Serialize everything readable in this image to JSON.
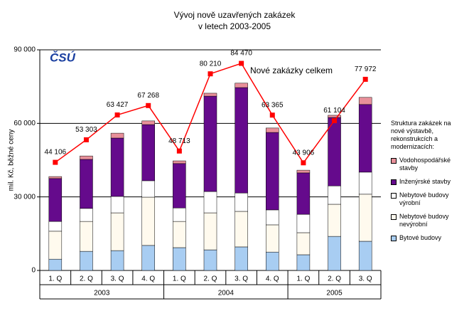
{
  "chart_data": {
    "type": "bar",
    "stacked": true,
    "title": "Vývoj nově uzavřených zakázek",
    "subtitle": "v letech 2003-2005",
    "logo": "ČSÚ",
    "y_label": "mil. Kč, běžné ceny",
    "legend_title": "Struktura zakázek na nové výstavbě, rekonstrukcích a modernizacích:",
    "groups": [
      {
        "name": "2003",
        "categories": [
          "1. Q",
          "2. Q",
          "3. Q",
          "4. Q"
        ]
      },
      {
        "name": "2004",
        "categories": [
          "1. Q",
          "2. Q",
          "3. Q",
          "4. Q"
        ]
      },
      {
        "name": "2005",
        "categories": [
          "1. Q",
          "2. Q",
          "3. Q"
        ]
      }
    ],
    "ylim": [
      0,
      90000
    ],
    "yticks": [
      {
        "value": 0,
        "label": "0"
      },
      {
        "value": 30000,
        "label": "30 000"
      },
      {
        "value": 60000,
        "label": "60 000"
      },
      {
        "value": 90000,
        "label": "90 000"
      }
    ],
    "grid": true,
    "series": [
      {
        "name": "Bytové budovy",
        "color": "#a8cdf2",
        "values": [
          4600,
          7800,
          8100,
          10200,
          9300,
          8400,
          9600,
          7500,
          6400,
          13900,
          11900
        ]
      },
      {
        "name": "Nebytové budovy nevýrobní",
        "color": "#fffaee",
        "values": [
          11400,
          12200,
          15400,
          19700,
          10700,
          15100,
          14500,
          11100,
          9000,
          13100,
          19200
        ]
      },
      {
        "name": "Nebytové budovy výrobní",
        "color": "#ffffff",
        "values": [
          4000,
          5300,
          6700,
          6700,
          5500,
          8700,
          7500,
          6100,
          7500,
          7500,
          9000
        ]
      },
      {
        "name": "Inženýrské stavby",
        "color": "#650a8c",
        "values": [
          17500,
          20000,
          23800,
          22900,
          18100,
          38900,
          43000,
          31600,
          16900,
          27900,
          27600
        ]
      },
      {
        "name": "Vodohospodářské stavby",
        "color": "#e8909a",
        "values": [
          800,
          1400,
          2000,
          1500,
          1100,
          1200,
          1800,
          1800,
          1100,
          900,
          2900
        ]
      },
      {
        "name": "Nové zakázky celkem",
        "type": "line",
        "color": "#ff0000",
        "values": [
          44106,
          53303,
          63427,
          67268,
          48713,
          80210,
          84470,
          63365,
          43906,
          61104,
          77972
        ],
        "value_labels": [
          "44 106",
          "53 303",
          "63 427",
          "67 268",
          "48 713",
          "80 210",
          "84 470",
          "63 365",
          "43 906",
          "61 104",
          "77 972"
        ]
      }
    ]
  }
}
